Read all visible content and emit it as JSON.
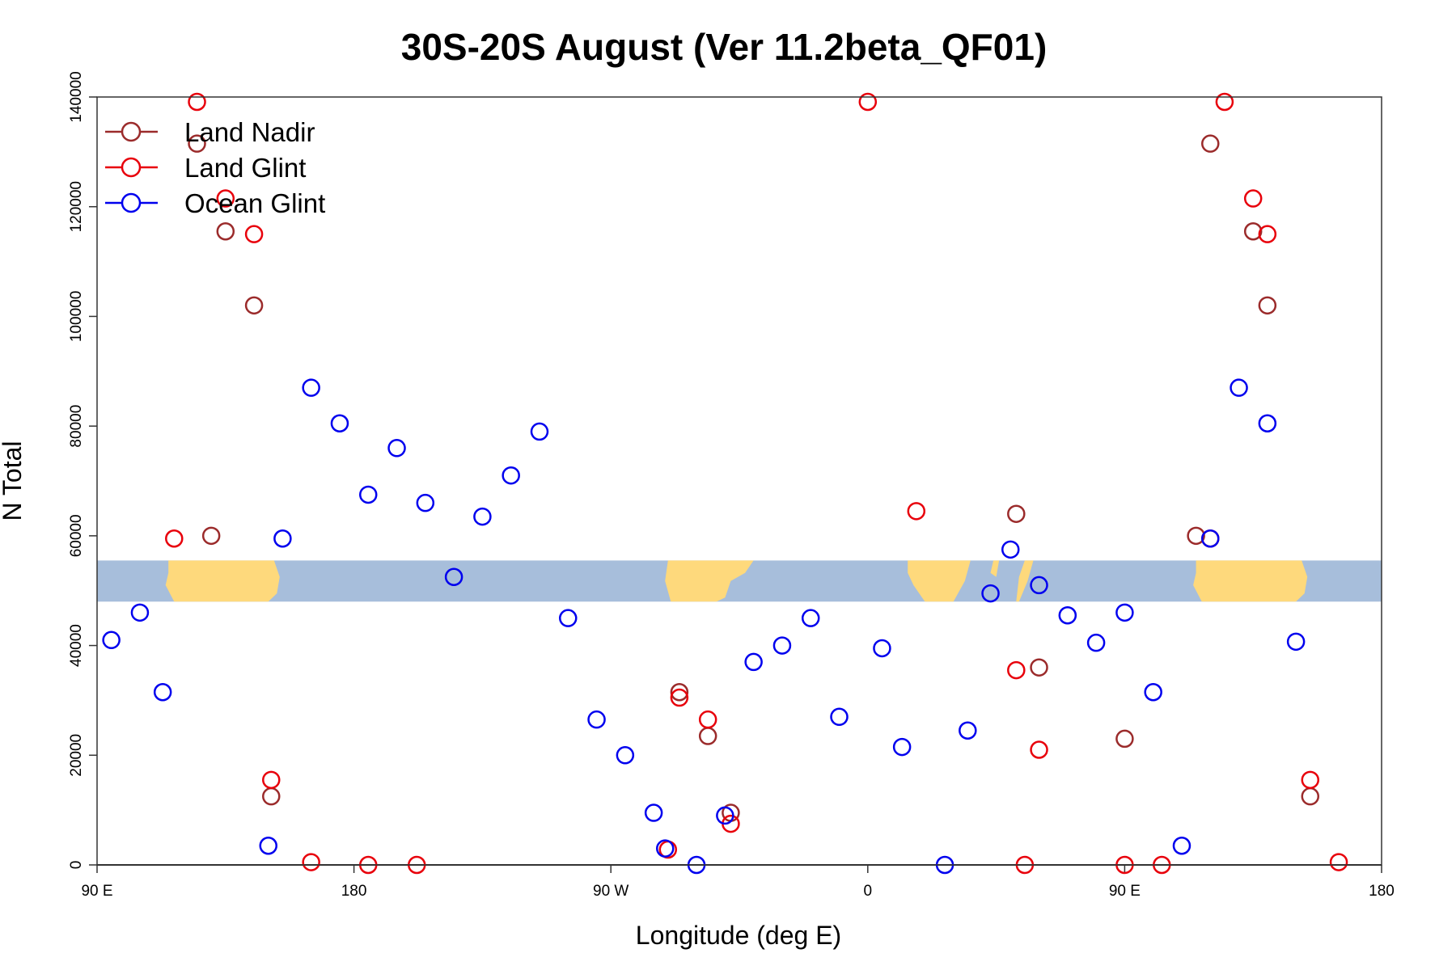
{
  "chart_data": {
    "type": "scatter",
    "title": "30S-20S August (Ver 11.2beta_QF01)",
    "xlabel": "Longitude (deg E)",
    "ylabel": "N Total",
    "xlim": [
      0,
      450
    ],
    "ylim": [
      0,
      140000
    ],
    "x_ticks": [
      {
        "value": 0,
        "label": "90 E"
      },
      {
        "value": 90,
        "label": "180"
      },
      {
        "value": 180,
        "label": "90 W"
      },
      {
        "value": 270,
        "label": "0"
      },
      {
        "value": 360,
        "label": "90 E"
      },
      {
        "value": 450,
        "label": "180"
      }
    ],
    "y_ticks": [
      {
        "value": 0,
        "label": "0"
      },
      {
        "value": 20000,
        "label": "20000"
      },
      {
        "value": 40000,
        "label": "40000"
      },
      {
        "value": 60000,
        "label": "60000"
      },
      {
        "value": 80000,
        "label": "80000"
      },
      {
        "value": 100000,
        "label": "100000"
      },
      {
        "value": 120000,
        "label": "120000"
      },
      {
        "value": 140000,
        "label": "140000"
      }
    ],
    "grid": false,
    "legend_position": "top-left",
    "map_band": {
      "y_range": [
        48000,
        55500
      ],
      "ocean_color": "#a7bedb",
      "land_color": "#fed97c"
    },
    "series": [
      {
        "name": "Land Nadir",
        "color": "#9b2b2b",
        "x": [
          35,
          40,
          45,
          55,
          61,
          204,
          214,
          222,
          322,
          330,
          360,
          385,
          390,
          405,
          410,
          425
        ],
        "y": [
          131500,
          60000,
          115500,
          102000,
          12500,
          31500,
          23500,
          9500,
          64000,
          36000,
          23000,
          60000,
          131500,
          115500,
          102000,
          12500
        ]
      },
      {
        "name": "Land Glint",
        "color": "#e8000b",
        "x": [
          35,
          27,
          45,
          55,
          61,
          75,
          95,
          112,
          200,
          204,
          214,
          222,
          270,
          287,
          322,
          330,
          360,
          325,
          373,
          390,
          405,
          410,
          425,
          435,
          395
        ],
        "y": [
          142000,
          59500,
          121500,
          115000,
          15500,
          500,
          0,
          0,
          2800,
          30500,
          26500,
          7500,
          141500,
          64500,
          35500,
          21000,
          0,
          0,
          0,
          59500,
          121500,
          115000,
          15500,
          500,
          141500
        ]
      },
      {
        "name": "Ocean Glint",
        "color": "#0000ee",
        "x": [
          5,
          15,
          23,
          60,
          65,
          75,
          85,
          95,
          105,
          115,
          125,
          135,
          145,
          155,
          165,
          175,
          185,
          195,
          199,
          210,
          220,
          230,
          240,
          250,
          260,
          275,
          282,
          297,
          305,
          313,
          320,
          330,
          340,
          350,
          360,
          370,
          380,
          390,
          400,
          410,
          420
        ],
        "y": [
          41000,
          46000,
          31500,
          3500,
          59500,
          87000,
          80500,
          67500,
          76000,
          66000,
          52500,
          63500,
          71000,
          79000,
          45000,
          26500,
          20000,
          9500,
          3000,
          0,
          9000,
          37000,
          40000,
          45000,
          27000,
          39500,
          21500,
          0,
          24500,
          49500,
          57500,
          51000,
          45500,
          40500,
          46000,
          31500,
          3500,
          59500,
          87000,
          80500,
          40700
        ]
      }
    ]
  }
}
